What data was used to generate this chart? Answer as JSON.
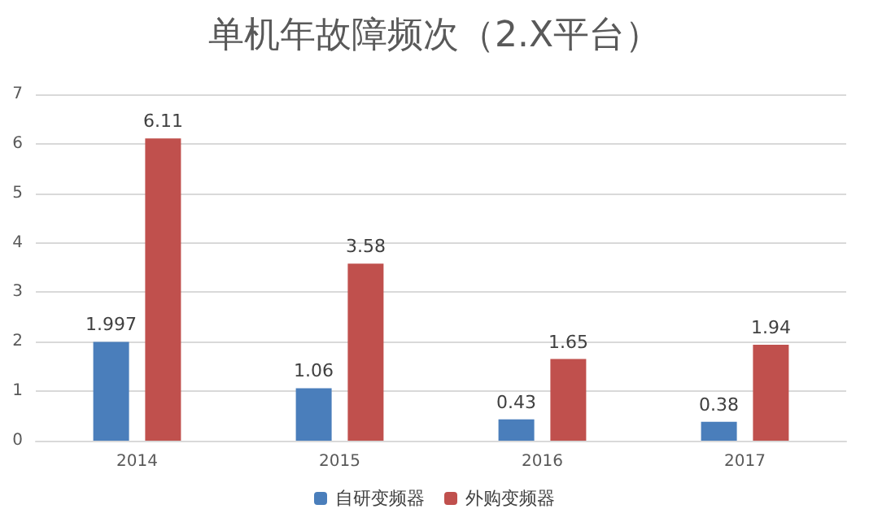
{
  "chart_data": {
    "type": "bar",
    "title": "单机年故障频次（2.X平台）",
    "categories": [
      "2014",
      "2015",
      "2016",
      "2017"
    ],
    "series": [
      {
        "name": "自研变频器",
        "color": "#4a7ebb",
        "values": [
          1.997,
          1.06,
          0.43,
          0.38
        ]
      },
      {
        "name": "外购变频器",
        "color": "#c0504d",
        "values": [
          6.11,
          3.58,
          1.65,
          1.94
        ]
      }
    ],
    "ylim": [
      0,
      7
    ],
    "yticks": [
      0,
      1,
      2,
      3,
      4,
      5,
      6,
      7
    ],
    "grid": "y",
    "legend": "bottom",
    "data_labels": true
  }
}
